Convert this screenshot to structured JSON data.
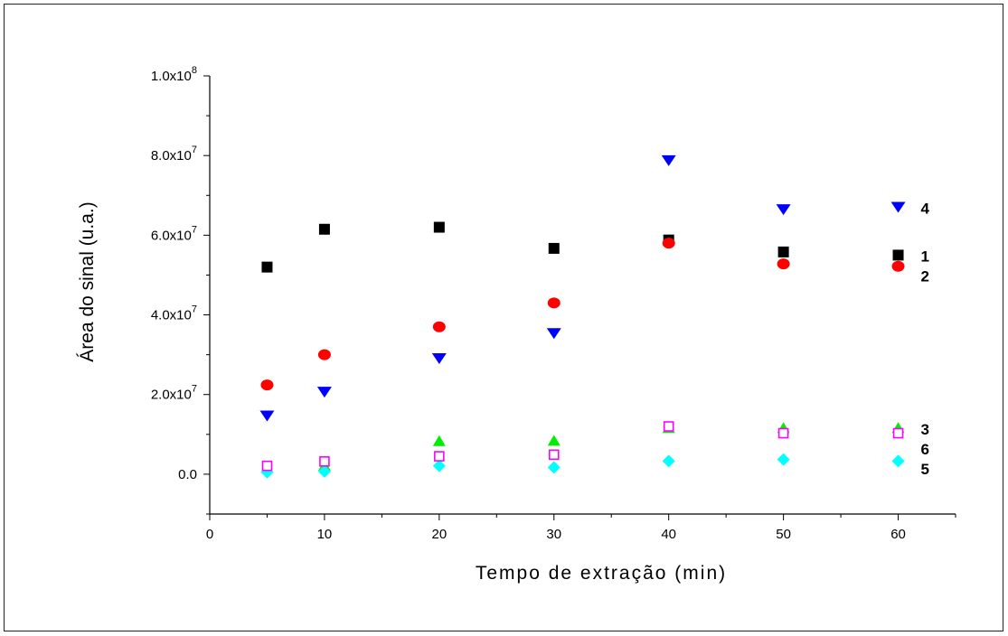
{
  "chart_data": {
    "type": "scatter",
    "xlabel": "Tempo de extração (min)",
    "ylabel": "Área do sinal (u.a.)",
    "xlim": [
      0,
      65
    ],
    "ylim": [
      -10000000,
      100000000
    ],
    "x_ticks": [
      0,
      10,
      20,
      30,
      40,
      50,
      60
    ],
    "y_ticks": [
      {
        "value": 0,
        "label": "0.0",
        "exp": ""
      },
      {
        "value": 20000000,
        "label": "2.0x10",
        "exp": "7"
      },
      {
        "value": 40000000,
        "label": "4.0x10",
        "exp": "7"
      },
      {
        "value": 60000000,
        "label": "6.0x10",
        "exp": "7"
      },
      {
        "value": 80000000,
        "label": "8.0x10",
        "exp": "7"
      },
      {
        "value": 100000000,
        "label": "1.0x10",
        "exp": "8"
      }
    ],
    "grid": false,
    "x": [
      5,
      10,
      20,
      30,
      40,
      50,
      60
    ],
    "series": [
      {
        "label": "1",
        "marker": "square",
        "color": "#000000",
        "values": [
          52000000,
          61500000,
          62000000,
          56700000,
          58800000,
          55800000,
          55000000
        ]
      },
      {
        "label": "2",
        "marker": "circle",
        "color": "#ff0000",
        "values": [
          22400000,
          30000000,
          37000000,
          43000000,
          58000000,
          52800000,
          52200000
        ]
      },
      {
        "label": "3",
        "marker": "triangle-up",
        "color": "#00ee00",
        "values": [
          1500000,
          2000000,
          8200000,
          8300000,
          11500000,
          11500000,
          11500000
        ]
      },
      {
        "label": "4",
        "marker": "triangle-down",
        "color": "#0000ff",
        "values": [
          14600000,
          20600000,
          29000000,
          35300000,
          78700000,
          66400000,
          67000000
        ]
      },
      {
        "label": "5",
        "marker": "diamond",
        "color": "#00ffff",
        "values": [
          500000,
          700000,
          2100000,
          1700000,
          3300000,
          3700000,
          3300000
        ]
      },
      {
        "label": "6",
        "marker": "open-square",
        "color": "#ff00ff",
        "values": [
          2100000,
          3200000,
          4500000,
          4900000,
          12000000,
          10300000,
          10300000
        ]
      }
    ]
  }
}
